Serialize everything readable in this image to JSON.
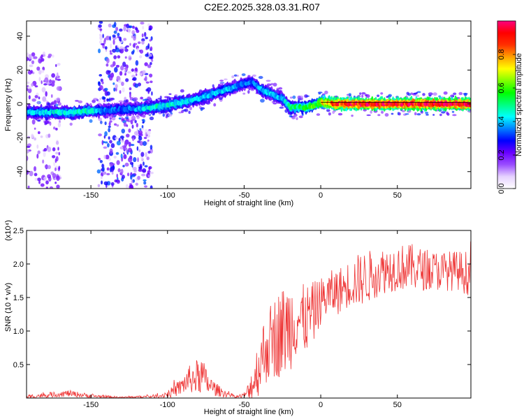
{
  "title": "C2E2.2025.328.03.31.R07",
  "chart_data": [
    {
      "type": "heatmap",
      "xlabel": "Height of straight line (km)",
      "ylabel": "Frequency (Hz)",
      "xlim": [
        -192,
        98
      ],
      "ylim": [
        -50,
        49
      ],
      "xticks": [
        -150,
        -100,
        -50,
        0,
        50
      ],
      "yticks": [
        -40,
        -20,
        0,
        20,
        40
      ],
      "colorbar": {
        "label": "Normalized spectral amplitude",
        "range": [
          0.0,
          1.0
        ],
        "ticks": [
          0.0,
          0.2,
          0.4,
          0.6,
          0.8
        ],
        "colors": [
          "#ffffff",
          "#e6d2ff",
          "#9a4dff",
          "#6a00ff",
          "#0000ff",
          "#0080ff",
          "#00ffff",
          "#00ff80",
          "#00ff00",
          "#80ff00",
          "#ffff00",
          "#ffa000",
          "#ff3000",
          "#ff0000",
          "#ff0080"
        ]
      },
      "ridge": {
        "x": [
          -192,
          -170,
          -160,
          -150,
          -140,
          -130,
          -120,
          -110,
          -100,
          -90,
          -80,
          -70,
          -60,
          -50,
          -45,
          -40,
          -35,
          -30,
          -25,
          -20,
          -15,
          -10,
          -5,
          0,
          10,
          30,
          50,
          70,
          98
        ],
        "y": [
          -5,
          -5,
          -5,
          -4,
          -4,
          -3,
          -3,
          -2,
          -1,
          1,
          3,
          6,
          9,
          12,
          13,
          9,
          7,
          5,
          3,
          -2,
          -2,
          -2,
          -1,
          1,
          0,
          0,
          0,
          0,
          0
        ],
        "amplitude": [
          0.4,
          0.45,
          0.45,
          0.45,
          0.35,
          0.35,
          0.4,
          0.45,
          0.45,
          0.45,
          0.4,
          0.4,
          0.4,
          0.35,
          0.35,
          0.4,
          0.4,
          0.4,
          0.4,
          0.5,
          0.5,
          0.55,
          0.6,
          0.7,
          0.9,
          0.95,
          0.95,
          0.95,
          0.95
        ]
      },
      "noise_bands": [
        {
          "x_range": [
            -145,
            -110
          ],
          "y_range": [
            -50,
            49
          ]
        },
        {
          "x_range": [
            -192,
            -170
          ],
          "y_range": [
            -50,
            30
          ]
        }
      ]
    },
    {
      "type": "line",
      "xlabel": "Height of straight line (km)",
      "ylabel": "SNR (10 * v/v)",
      "scale_label": "(x10⁴)",
      "xlim": [
        -192,
        98
      ],
      "ylim": [
        0,
        2.5
      ],
      "xticks": [
        -150,
        -100,
        -50,
        0,
        50
      ],
      "yticks": [
        0.5,
        1.0,
        1.5,
        2.0,
        2.5
      ],
      "color": "#ee3333",
      "envelope": {
        "x": [
          -192,
          -175,
          -165,
          -150,
          -130,
          -115,
          -105,
          -98,
          -92,
          -86,
          -82,
          -78,
          -74,
          -70,
          -66,
          -60,
          -55,
          -50,
          -47,
          -44,
          -40,
          -36,
          -32,
          -28,
          -24,
          -20,
          -16,
          -12,
          -8,
          -4,
          0,
          6,
          12,
          18,
          24,
          30,
          40,
          50,
          60,
          70,
          80,
          90,
          98
        ],
        "mean": [
          0.02,
          0.05,
          0.07,
          0.03,
          0.01,
          0.02,
          0.03,
          0.08,
          0.15,
          0.28,
          0.3,
          0.35,
          0.22,
          0.15,
          0.1,
          0.05,
          0.02,
          0.04,
          0.1,
          0.25,
          0.5,
          0.75,
          0.85,
          0.95,
          1.0,
          1.1,
          1.2,
          1.15,
          1.2,
          1.3,
          1.45,
          1.55,
          1.6,
          1.7,
          1.75,
          1.8,
          1.9,
          1.95,
          1.95,
          1.9,
          1.9,
          1.9,
          1.85
        ],
        "amp": [
          0.03,
          0.04,
          0.05,
          0.03,
          0.01,
          0.02,
          0.03,
          0.07,
          0.12,
          0.2,
          0.25,
          0.3,
          0.18,
          0.12,
          0.08,
          0.04,
          0.02,
          0.04,
          0.15,
          0.35,
          0.45,
          0.55,
          0.6,
          0.65,
          0.7,
          0.7,
          0.6,
          0.55,
          0.5,
          0.45,
          0.35,
          0.35,
          0.35,
          0.35,
          0.4,
          0.4,
          0.35,
          0.35,
          0.35,
          0.3,
          0.3,
          0.3,
          0.35
        ]
      }
    }
  ]
}
